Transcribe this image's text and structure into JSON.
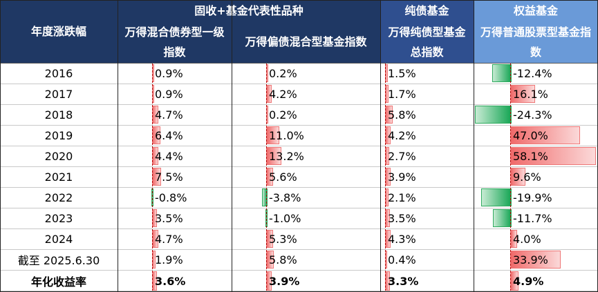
{
  "header": {
    "row_label": "年度涨跌幅",
    "groups": [
      {
        "label": "固收+基金代表性品种"
      },
      {
        "label": "纯债基金"
      },
      {
        "label": "权益基金"
      }
    ],
    "columns": [
      {
        "label": "万得混合债券型一级指数"
      },
      {
        "label": "万得偏债混合型基金指数"
      },
      {
        "label": "万得纯债型基金总指数"
      },
      {
        "label": "万得普通股票型基金指数"
      }
    ]
  },
  "rows": [
    {
      "year": "2016",
      "cells": [
        "0.9%",
        "0.2%",
        "1.5%",
        "-12.4%"
      ]
    },
    {
      "year": "2017",
      "cells": [
        "0.9%",
        "4.2%",
        "1.7%",
        "16.1%"
      ]
    },
    {
      "year": "2018",
      "cells": [
        "4.7%",
        "0.2%",
        "5.8%",
        "-24.3%"
      ]
    },
    {
      "year": "2019",
      "cells": [
        "6.4%",
        "11.0%",
        "4.2%",
        "47.0%"
      ]
    },
    {
      "year": "2020",
      "cells": [
        "4.4%",
        "13.2%",
        "2.7%",
        "58.1%"
      ]
    },
    {
      "year": "2021",
      "cells": [
        "7.5%",
        "5.6%",
        "3.9%",
        "9.6%"
      ]
    },
    {
      "year": "2022",
      "cells": [
        "-0.8%",
        "-3.8%",
        "2.1%",
        "-19.9%"
      ]
    },
    {
      "year": "2023",
      "cells": [
        "3.5%",
        "-1.0%",
        "3.5%",
        "-11.7%"
      ]
    },
    {
      "year": "2024",
      "cells": [
        "4.7%",
        "5.3%",
        "4.3%",
        "4.0%"
      ]
    },
    {
      "year": "截至 2025.6.30",
      "cells": [
        "1.9%",
        "5.8%",
        "0.4%",
        "33.9%"
      ]
    },
    {
      "year": "年化收益率",
      "cells": [
        "3.6%",
        "3.9%",
        "3.3%",
        "4.9%"
      ],
      "bold": true
    }
  ],
  "colors": {
    "header_dark": "#1f3864",
    "header_mid": "#2f4f8f",
    "header_light": "#6a9ad8",
    "positive_bar": "#f06a6a",
    "negative_bar": "#17a655"
  }
}
